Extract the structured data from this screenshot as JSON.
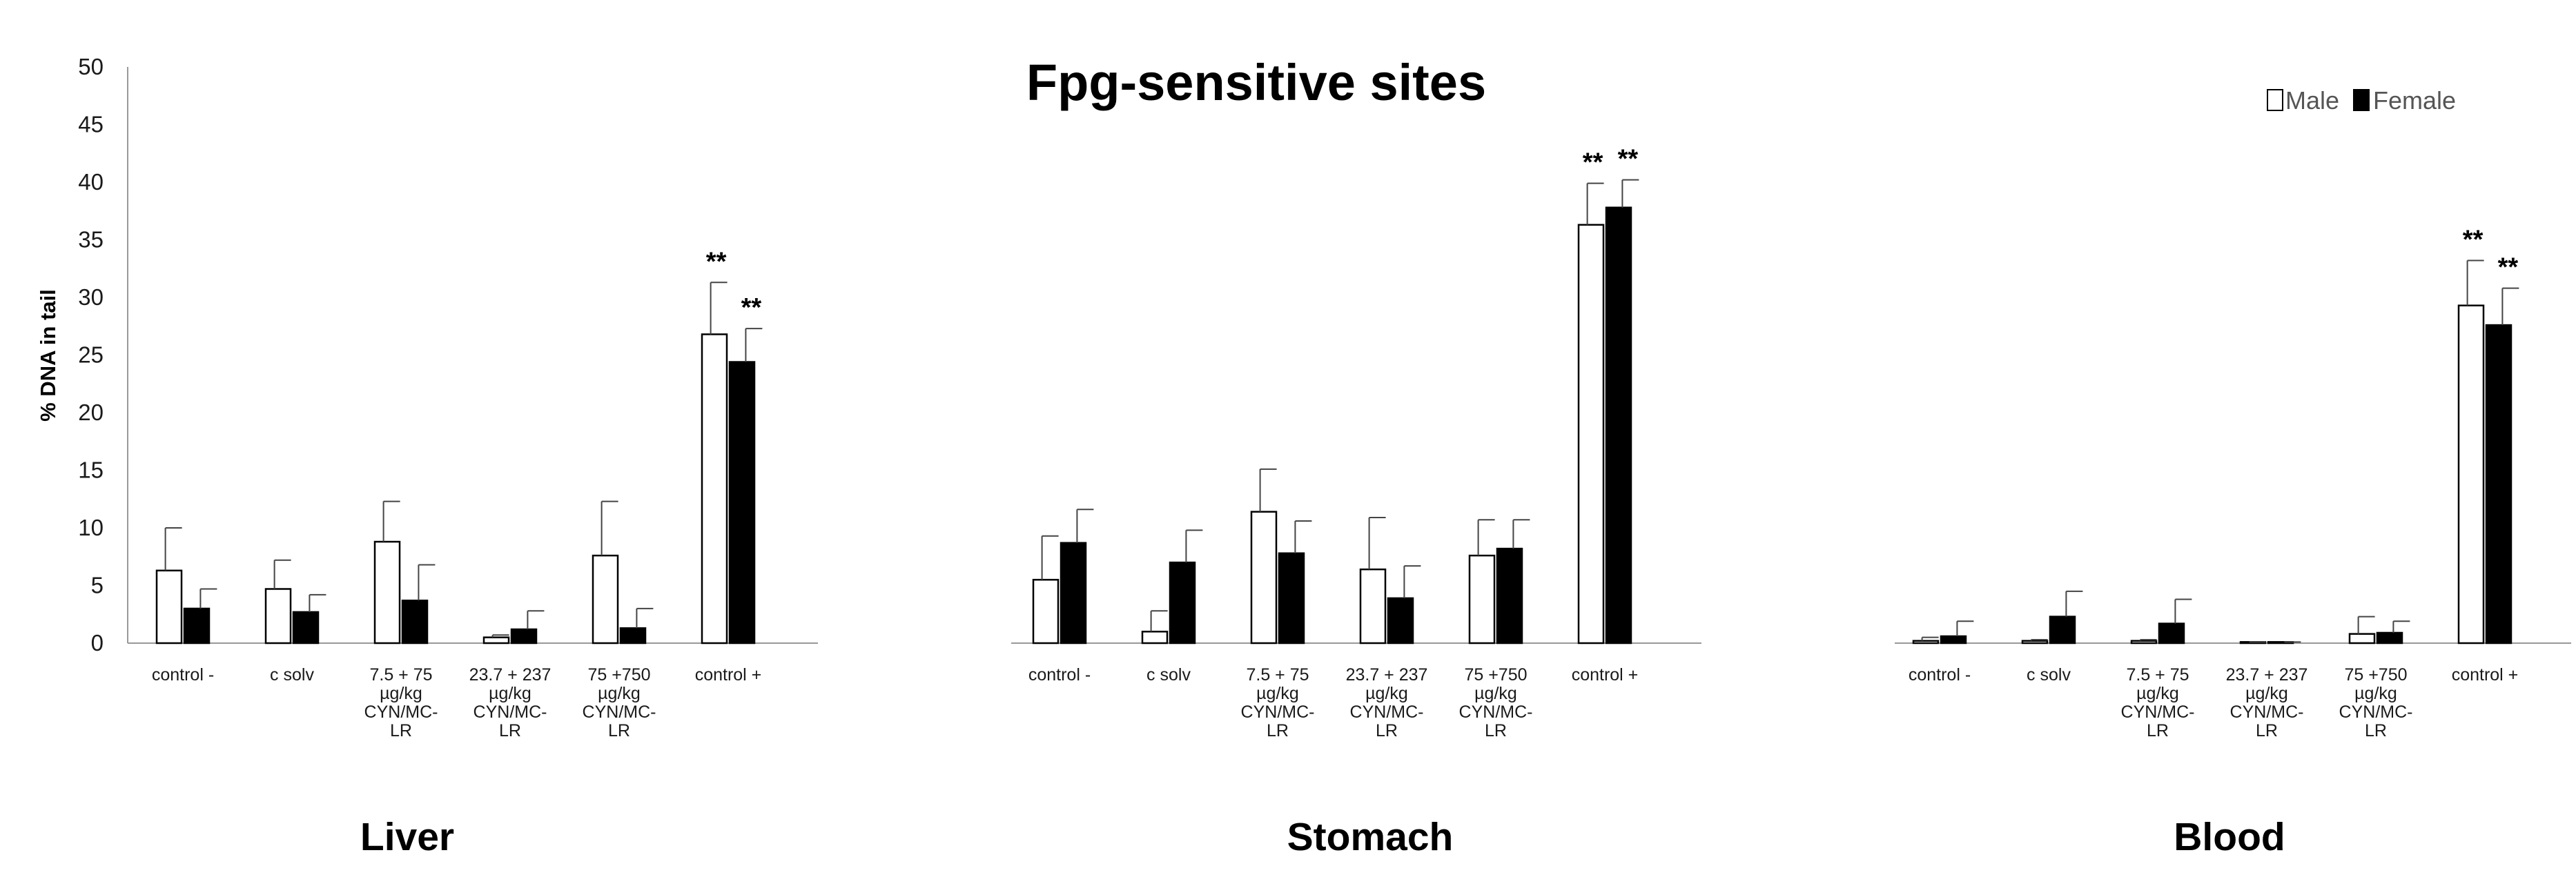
{
  "chart_data": {
    "type": "bar",
    "title": "Fpg-sensitive sites",
    "ylabel": "% DNA in tail",
    "xlabel": "",
    "ylim": [
      0,
      50
    ],
    "yticks": [
      "0",
      "5",
      "10",
      "15",
      "20",
      "25",
      "30",
      "35",
      "40",
      "45",
      "50"
    ],
    "grid": false,
    "legend_position": "top-right",
    "series": [
      {
        "name": "Male",
        "color": "#ffffff",
        "stroke": "#000000"
      },
      {
        "name": "Female",
        "color": "#000000",
        "stroke": "#000000"
      }
    ],
    "groups": [
      {
        "name": "Liver",
        "categories": [
          {
            "label": [
              "control -"
            ],
            "values": [
              6.3,
              3.0
            ],
            "errors": [
              3.7,
              1.7
            ],
            "significance": [
              "",
              ""
            ]
          },
          {
            "label": [
              "c solv"
            ],
            "values": [
              4.7,
              2.7
            ],
            "errors": [
              2.5,
              1.5
            ],
            "significance": [
              "",
              ""
            ]
          },
          {
            "label": [
              "7.5 + 75",
              "µg/kg",
              "CYN/MC-",
              "LR"
            ],
            "values": [
              8.8,
              3.7
            ],
            "errors": [
              3.5,
              3.1
            ],
            "significance": [
              "",
              ""
            ]
          },
          {
            "label": [
              "23.7 + 237",
              "µg/kg",
              "CYN/MC-",
              "LR"
            ],
            "values": [
              0.5,
              1.2
            ],
            "errors": [
              0.2,
              1.6
            ],
            "significance": [
              "",
              ""
            ]
          },
          {
            "label": [
              "75 +750",
              "µg/kg",
              "CYN/MC-",
              "LR"
            ],
            "values": [
              7.6,
              1.3
            ],
            "errors": [
              4.7,
              1.7
            ],
            "significance": [
              "",
              ""
            ]
          },
          {
            "label": [
              "control +"
            ],
            "values": [
              26.8,
              24.4
            ],
            "errors": [
              4.5,
              2.9
            ],
            "significance": [
              "**",
              "**"
            ]
          }
        ]
      },
      {
        "name": "Stomach",
        "categories": [
          {
            "label": [
              "control -"
            ],
            "values": [
              5.5,
              8.7
            ],
            "errors": [
              3.8,
              2.9
            ],
            "significance": [
              "",
              ""
            ]
          },
          {
            "label": [
              "c solv"
            ],
            "values": [
              1.0,
              7.0
            ],
            "errors": [
              1.8,
              2.8
            ],
            "significance": [
              "",
              ""
            ]
          },
          {
            "label": [
              "7.5 + 75",
              "µg/kg",
              "CYN/MC-",
              "LR"
            ],
            "values": [
              11.4,
              7.8
            ],
            "errors": [
              3.7,
              2.8
            ],
            "significance": [
              "",
              ""
            ]
          },
          {
            "label": [
              "23.7 + 237",
              "µg/kg",
              "CYN/MC-",
              "LR"
            ],
            "values": [
              6.4,
              3.9
            ],
            "errors": [
              4.5,
              2.8
            ],
            "significance": [
              "",
              ""
            ]
          },
          {
            "label": [
              "75 +750",
              "µg/kg",
              "CYN/MC-",
              "LR"
            ],
            "values": [
              7.6,
              8.2
            ],
            "errors": [
              3.1,
              2.5
            ],
            "significance": [
              "",
              ""
            ]
          },
          {
            "label": [
              "control +"
            ],
            "values": [
              36.3,
              37.8
            ],
            "errors": [
              3.6,
              2.4
            ],
            "significance": [
              "**",
              "**"
            ]
          }
        ]
      },
      {
        "name": "Blood",
        "categories": [
          {
            "label": [
              "control -"
            ],
            "values": [
              0.2,
              0.6
            ],
            "errors": [
              0.3,
              1.3
            ],
            "significance": [
              "",
              ""
            ]
          },
          {
            "label": [
              "c solv"
            ],
            "values": [
              0.2,
              2.3
            ],
            "errors": [
              0.1,
              2.2
            ],
            "significance": [
              "",
              ""
            ]
          },
          {
            "label": [
              "7.5 + 75",
              "µg/kg",
              "CYN/MC-",
              "LR"
            ],
            "values": [
              0.2,
              1.7
            ],
            "errors": [
              0.1,
              2.1
            ],
            "significance": [
              "",
              ""
            ]
          },
          {
            "label": [
              "23.7 + 237",
              "µg/kg",
              "CYN/MC-",
              "LR"
            ],
            "values": [
              0.1,
              0.1
            ],
            "errors": [
              0.0,
              0.0
            ],
            "significance": [
              "",
              ""
            ]
          },
          {
            "label": [
              "75 +750",
              "µg/kg",
              "CYN/MC-",
              "LR"
            ],
            "values": [
              0.8,
              0.9
            ],
            "errors": [
              1.5,
              1.0
            ],
            "significance": [
              "",
              ""
            ]
          },
          {
            "label": [
              "control +"
            ],
            "values": [
              29.3,
              27.6
            ],
            "errors": [
              3.9,
              3.2
            ],
            "significance": [
              "**",
              "**"
            ]
          }
        ]
      }
    ]
  }
}
